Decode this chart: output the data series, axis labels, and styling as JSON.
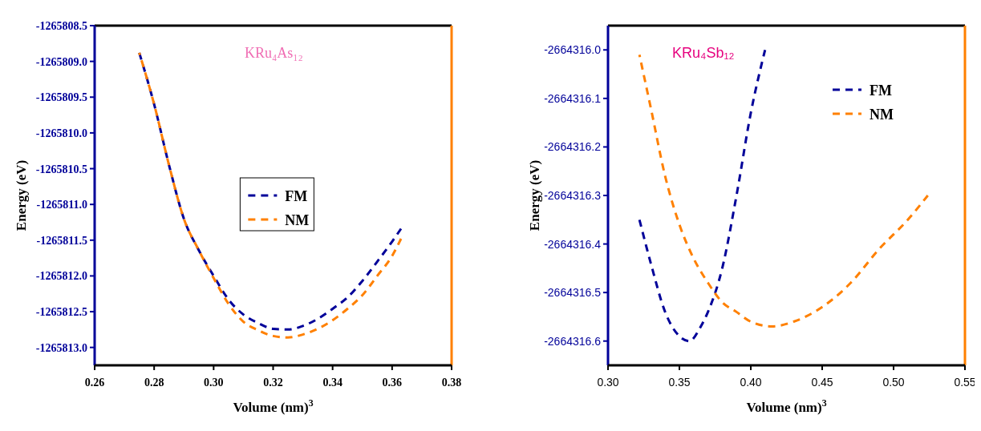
{
  "chart_data": [
    {
      "type": "line",
      "title": "KRu₄As₁₂",
      "xlabel": "Volume (nm)$^{3}$",
      "ylabel": "Energy (eV)",
      "xlim": [
        0.26,
        0.38
      ],
      "xticks": [
        {
          "value": 0.26,
          "label": "0.26"
        },
        {
          "value": 0.28,
          "label": "0.28"
        },
        {
          "value": 0.3,
          "label": "0.30"
        },
        {
          "value": 0.32,
          "label": "0.32"
        },
        {
          "value": 0.34,
          "label": "0.34"
        },
        {
          "value": 0.36,
          "label": "0.36"
        },
        {
          "value": 0.38,
          "label": "0.38"
        }
      ],
      "ylim": [
        -1265813.25,
        -1265808.5
      ],
      "yticks": [
        {
          "value": -1265813,
          "label": "-1265813.0"
        },
        -1265812.5,
        {
          "value": -1265812,
          "label": "-1265812.0"
        },
        -1265811.5,
        {
          "value": -1265811,
          "label": "-1265811.0"
        },
        -1265810.5,
        {
          "value": -1265810,
          "label": "-1265810.0"
        },
        -1265809.5,
        {
          "value": -1265809,
          "label": "-1265809.0"
        },
        -1265808.5
      ],
      "legend": "center",
      "line_style": "dashed",
      "x": [
        0.275,
        0.28,
        0.285,
        0.29,
        0.295,
        0.3,
        0.305,
        0.31,
        0.315,
        0.32,
        0.325,
        0.33,
        0.335,
        0.34,
        0.345,
        0.35,
        0.355,
        0.36,
        0.363
      ],
      "series": [
        {
          "name": "FM",
          "color": "#000099",
          "values": [
            -1265808.88,
            -1265809.6,
            -1265810.45,
            -1265811.2,
            -1265811.64,
            -1265812.0,
            -1265812.33,
            -1265812.54,
            -1265812.66,
            -1265812.74,
            -1265812.75,
            -1265812.7,
            -1265812.6,
            -1265812.46,
            -1265812.3,
            -1265812.07,
            -1265811.8,
            -1265811.52,
            -1265811.34
          ]
        },
        {
          "name": "NM",
          "color": "#ff8000",
          "values": [
            -1265808.88,
            -1265809.6,
            -1265810.45,
            -1265811.2,
            -1265811.64,
            -1265812.03,
            -1265812.39,
            -1265812.64,
            -1265812.76,
            -1265812.84,
            -1265812.86,
            -1265812.82,
            -1265812.74,
            -1265812.62,
            -1265812.46,
            -1265812.27,
            -1265812.0,
            -1265811.72,
            -1265811.48
          ]
        }
      ]
    },
    {
      "type": "line",
      "title": "KRu₄Sb₁₂",
      "xlabel": "Volume (nm)$^{3}$",
      "ylabel": "Energy (eV)",
      "xlim": [
        0.3,
        0.55
      ],
      "xticks": [
        {
          "value": 0.3,
          "label": "0.30"
        },
        0.35,
        {
          "value": 0.4,
          "label": "0.40"
        },
        0.45,
        {
          "value": 0.5,
          "label": "0.50"
        },
        0.55
      ],
      "ylim": [
        -2664316.65,
        -2664315.95
      ],
      "yticks": [
        -2664316.6,
        -2664316.5,
        -2664316.4,
        -2664316.3,
        -2664316.2,
        -2664316.1,
        {
          "value": -2664316,
          "label": "-2664316.0"
        }
      ],
      "legend": "top right",
      "line_style": "dashed",
      "series": [
        {
          "name": "FM",
          "color": "#000099",
          "x": [
            0.322,
            0.33,
            0.34,
            0.35,
            0.357,
            0.365,
            0.37,
            0.38,
            0.39,
            0.4,
            0.41
          ],
          "values": [
            -2664316.35,
            -2664316.44,
            -2664316.54,
            -2664316.59,
            -2664316.6,
            -2664316.57,
            -2664316.54,
            -2664316.45,
            -2664316.3,
            -2664316.13,
            -2664316.0
          ]
        },
        {
          "name": "NM",
          "color": "#ff8000",
          "x": [
            0.322,
            0.33,
            0.34,
            0.35,
            0.36,
            0.37,
            0.38,
            0.39,
            0.4,
            0.415,
            0.43,
            0.45,
            0.47,
            0.49,
            0.51,
            0.524
          ],
          "values": [
            -2664316.01,
            -2664316.12,
            -2664316.26,
            -2664316.36,
            -2664316.43,
            -2664316.48,
            -2664316.52,
            -2664316.54,
            -2664316.56,
            -2664316.57,
            -2664316.56,
            -2664316.53,
            -2664316.48,
            -2664316.41,
            -2664316.35,
            -2664316.3
          ]
        }
      ]
    }
  ]
}
